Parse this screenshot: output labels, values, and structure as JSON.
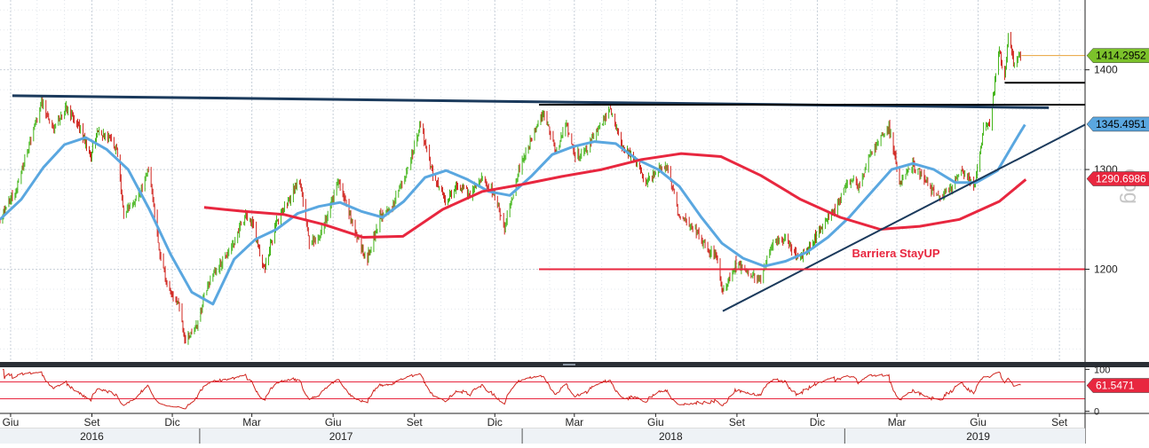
{
  "chart_data": [
    {
      "type": "line",
      "panel": "price",
      "title": "",
      "xlabel": "",
      "ylabel": "",
      "x_range": [
        "2016-05-20",
        "2019-09-30"
      ],
      "ylim": [
        1107,
        1470
      ],
      "y_ticks": [
        1200,
        1300,
        1400
      ],
      "grid": true,
      "price_path": [
        [
          "2016-05-20",
          1250
        ],
        [
          "2016-06-08",
          1282
        ],
        [
          "2016-06-25",
          1335
        ],
        [
          "2016-07-06",
          1368
        ],
        [
          "2016-07-20",
          1342
        ],
        [
          "2016-08-03",
          1362
        ],
        [
          "2016-08-17",
          1345
        ],
        [
          "2016-08-31",
          1312
        ],
        [
          "2016-09-07",
          1338
        ],
        [
          "2016-09-21",
          1330
        ],
        [
          "2016-09-30",
          1316
        ],
        [
          "2016-10-07",
          1256
        ],
        [
          "2016-10-21",
          1268
        ],
        [
          "2016-11-04",
          1300
        ],
        [
          "2016-11-10",
          1265
        ],
        [
          "2016-11-18",
          1208
        ],
        [
          "2016-11-30",
          1172
        ],
        [
          "2016-12-08",
          1168
        ],
        [
          "2016-12-15",
          1128
        ],
        [
          "2016-12-28",
          1142
        ],
        [
          "2017-01-10",
          1185
        ],
        [
          "2017-01-25",
          1205
        ],
        [
          "2017-02-08",
          1225
        ],
        [
          "2017-02-22",
          1255
        ],
        [
          "2017-03-02",
          1245
        ],
        [
          "2017-03-15",
          1200
        ],
        [
          "2017-03-30",
          1250
        ],
        [
          "2017-04-11",
          1268
        ],
        [
          "2017-04-24",
          1290
        ],
        [
          "2017-05-05",
          1228
        ],
        [
          "2017-05-15",
          1230
        ],
        [
          "2017-05-31",
          1268
        ],
        [
          "2017-06-07",
          1290
        ],
        [
          "2017-06-20",
          1252
        ],
        [
          "2017-07-03",
          1220
        ],
        [
          "2017-07-10",
          1212
        ],
        [
          "2017-07-24",
          1252
        ],
        [
          "2017-08-07",
          1262
        ],
        [
          "2017-08-21",
          1292
        ],
        [
          "2017-09-08",
          1345
        ],
        [
          "2017-09-22",
          1295
        ],
        [
          "2017-10-06",
          1268
        ],
        [
          "2017-10-20",
          1285
        ],
        [
          "2017-11-03",
          1275
        ],
        [
          "2017-11-17",
          1293
        ],
        [
          "2017-12-01",
          1275
        ],
        [
          "2017-12-12",
          1240
        ],
        [
          "2017-12-28",
          1300
        ],
        [
          "2018-01-12",
          1332
        ],
        [
          "2018-01-25",
          1358
        ],
        [
          "2018-02-08",
          1318
        ],
        [
          "2018-02-20",
          1345
        ],
        [
          "2018-03-01",
          1313
        ],
        [
          "2018-03-15",
          1320
        ],
        [
          "2018-03-28",
          1343
        ],
        [
          "2018-04-11",
          1360
        ],
        [
          "2018-04-25",
          1322
        ],
        [
          "2018-05-09",
          1310
        ],
        [
          "2018-05-21",
          1287
        ],
        [
          "2018-06-05",
          1300
        ],
        [
          "2018-06-14",
          1303
        ],
        [
          "2018-06-28",
          1250
        ],
        [
          "2018-07-12",
          1245
        ],
        [
          "2018-07-26",
          1225
        ],
        [
          "2018-08-09",
          1212
        ],
        [
          "2018-08-16",
          1176
        ],
        [
          "2018-08-30",
          1205
        ],
        [
          "2018-09-13",
          1198
        ],
        [
          "2018-09-27",
          1188
        ],
        [
          "2018-10-11",
          1225
        ],
        [
          "2018-10-26",
          1232
        ],
        [
          "2018-11-09",
          1210
        ],
        [
          "2018-11-23",
          1223
        ],
        [
          "2018-12-07",
          1245
        ],
        [
          "2018-12-21",
          1258
        ],
        [
          "2019-01-04",
          1287
        ],
        [
          "2019-01-18",
          1285
        ],
        [
          "2019-02-01",
          1320
        ],
        [
          "2019-02-20",
          1343
        ],
        [
          "2019-03-05",
          1285
        ],
        [
          "2019-03-19",
          1305
        ],
        [
          "2019-04-02",
          1290
        ],
        [
          "2019-04-16",
          1272
        ],
        [
          "2019-04-30",
          1280
        ],
        [
          "2019-05-14",
          1297
        ],
        [
          "2019-05-28",
          1285
        ],
        [
          "2019-06-07",
          1340
        ],
        [
          "2019-06-14",
          1345
        ],
        [
          "2019-06-25",
          1420
        ],
        [
          "2019-07-01",
          1392
        ],
        [
          "2019-07-05",
          1432
        ],
        [
          "2019-07-12",
          1405
        ],
        [
          "2019-07-20",
          1415
        ]
      ],
      "series": [
        {
          "name": "",
          "color": "#5aa7e0",
          "values": [
            [
              "2016-05-20",
              1250
            ],
            [
              "2016-06-13",
              1270
            ],
            [
              "2016-07-08",
              1302
            ],
            [
              "2016-08-01",
              1325
            ],
            [
              "2016-08-25",
              1332
            ],
            [
              "2016-09-18",
              1320
            ],
            [
              "2016-10-12",
              1300
            ],
            [
              "2016-11-05",
              1260
            ],
            [
              "2016-11-29",
              1215
            ],
            [
              "2016-12-23",
              1177
            ],
            [
              "2017-01-16",
              1165
            ],
            [
              "2017-02-09",
              1210
            ],
            [
              "2017-03-05",
              1230
            ],
            [
              "2017-03-29",
              1240
            ],
            [
              "2017-04-22",
              1256
            ],
            [
              "2017-05-16",
              1263
            ],
            [
              "2017-06-09",
              1267
            ],
            [
              "2017-07-03",
              1258
            ],
            [
              "2017-07-27",
              1252
            ],
            [
              "2017-08-20",
              1268
            ],
            [
              "2017-09-13",
              1292
            ],
            [
              "2017-10-07",
              1299
            ],
            [
              "2017-10-31",
              1290
            ],
            [
              "2017-11-24",
              1278
            ],
            [
              "2017-12-18",
              1274
            ],
            [
              "2018-01-11",
              1293
            ],
            [
              "2018-02-04",
              1315
            ],
            [
              "2018-02-28",
              1323
            ],
            [
              "2018-03-24",
              1328
            ],
            [
              "2018-04-17",
              1326
            ],
            [
              "2018-05-11",
              1310
            ],
            [
              "2018-06-04",
              1300
            ],
            [
              "2018-06-28",
              1283
            ],
            [
              "2018-07-22",
              1253
            ],
            [
              "2018-08-15",
              1226
            ],
            [
              "2018-09-08",
              1211
            ],
            [
              "2018-10-02",
              1203
            ],
            [
              "2018-10-26",
              1208
            ],
            [
              "2018-11-19",
              1217
            ],
            [
              "2018-12-13",
              1232
            ],
            [
              "2019-01-06",
              1252
            ],
            [
              "2019-01-30",
              1276
            ],
            [
              "2019-02-23",
              1300
            ],
            [
              "2019-03-19",
              1306
            ],
            [
              "2019-04-12",
              1300
            ],
            [
              "2019-05-06",
              1287
            ],
            [
              "2019-05-30",
              1287
            ],
            [
              "2019-06-23",
              1299
            ],
            [
              "2019-07-17",
              1335
            ],
            [
              "2019-07-24",
              1345
            ]
          ]
        },
        {
          "name": "",
          "color": "#e8273f",
          "values": [
            [
              "2017-01-06",
              1262
            ],
            [
              "2017-02-20",
              1258
            ],
            [
              "2017-04-06",
              1255
            ],
            [
              "2017-05-21",
              1245
            ],
            [
              "2017-07-05",
              1232
            ],
            [
              "2017-08-19",
              1233
            ],
            [
              "2017-10-03",
              1260
            ],
            [
              "2017-11-17",
              1278
            ],
            [
              "2018-01-01",
              1285
            ],
            [
              "2018-02-15",
              1293
            ],
            [
              "2018-04-01",
              1300
            ],
            [
              "2018-05-16",
              1310
            ],
            [
              "2018-06-30",
              1316
            ],
            [
              "2018-08-14",
              1313
            ],
            [
              "2018-09-28",
              1294
            ],
            [
              "2018-11-12",
              1270
            ],
            [
              "2018-12-27",
              1252
            ],
            [
              "2019-02-10",
              1240
            ],
            [
              "2019-03-27",
              1243
            ],
            [
              "2019-05-11",
              1250
            ],
            [
              "2019-06-25",
              1268
            ],
            [
              "2019-07-25",
              1290
            ]
          ]
        }
      ],
      "trendlines": [
        {
          "name": "",
          "color": "#1b3a5c",
          "from": [
            "2016-06-03",
            1374
          ],
          "to": [
            "2019-08-20",
            1362
          ]
        },
        {
          "name": "",
          "color": "#1b3a5c",
          "from": [
            "2018-08-16",
            1158
          ],
          "to": [
            "2019-09-30",
            1345
          ]
        },
        {
          "name": "",
          "color": "#000000",
          "from": [
            "2018-01-20",
            1365
          ],
          "to": [
            "2019-09-30",
            1365
          ]
        },
        {
          "name": "",
          "color": "#000000",
          "from": [
            "2019-07-01",
            1387
          ],
          "to": [
            "2019-09-30",
            1387
          ]
        },
        {
          "name": "",
          "color": "#e8273f",
          "from": [
            "2018-01-20",
            1200
          ],
          "to": [
            "2019-09-30",
            1200
          ]
        },
        {
          "name": "",
          "color": "#e8a33a",
          "from": [
            "2019-07-20",
            1414.2952
          ],
          "to": [
            "2019-09-30",
            1414.2952
          ]
        }
      ],
      "annotations": [
        {
          "text": "Barriera StayUP",
          "color": "#e8273f",
          "date": "2019-02-28",
          "value": 1212
        }
      ],
      "last_value_labels": [
        {
          "text": "1414.2952",
          "value": 1414.2952,
          "bg": "#7cc22b",
          "fg": "#000000"
        },
        {
          "text": "1345.4951",
          "value": 1345.4951,
          "bg": "#5aa7e0",
          "fg": "#000000"
        },
        {
          "text": "1290.6986",
          "value": 1290.6986,
          "bg": "#e8273f",
          "fg": "#ffffff"
        }
      ],
      "watermark": "oog",
      "colors": {
        "up": "#44b51b",
        "down": "#d0241e"
      }
    },
    {
      "type": "line",
      "panel": "oscillator",
      "ylim": [
        -5,
        105
      ],
      "y_ticks": [
        100,
        0
      ],
      "levels": [
        70,
        30
      ],
      "level_color": "#e8273f",
      "last_value_label": {
        "text": "61.5471",
        "value": 61.5471,
        "bg": "#e8273f",
        "fg": "#ffffff"
      }
    }
  ],
  "x_axis": {
    "months": [
      {
        "label": "Giu",
        "date": "2016-06-01"
      },
      {
        "label": "Set",
        "date": "2016-09-01"
      },
      {
        "label": "Dic",
        "date": "2016-12-01"
      },
      {
        "label": "Mar",
        "date": "2017-03-01"
      },
      {
        "label": "Giu",
        "date": "2017-06-01"
      },
      {
        "label": "Set",
        "date": "2017-09-01"
      },
      {
        "label": "Dic",
        "date": "2017-12-01"
      },
      {
        "label": "Mar",
        "date": "2018-03-01"
      },
      {
        "label": "Giu",
        "date": "2018-06-01"
      },
      {
        "label": "Set",
        "date": "2018-09-01"
      },
      {
        "label": "Dic",
        "date": "2018-12-01"
      },
      {
        "label": "Mar",
        "date": "2019-03-01"
      },
      {
        "label": "Giu",
        "date": "2019-06-01"
      },
      {
        "label": "Set",
        "date": "2019-09-01"
      }
    ],
    "years": [
      {
        "label": "2016",
        "date": "2016-09-01"
      },
      {
        "label": "2017",
        "date": "2017-06-10"
      },
      {
        "label": "2018",
        "date": "2018-06-18"
      },
      {
        "label": "2019",
        "date": "2019-06-01"
      }
    ],
    "year_breaks": [
      "2017-01-01",
      "2018-01-01",
      "2019-01-01"
    ]
  }
}
